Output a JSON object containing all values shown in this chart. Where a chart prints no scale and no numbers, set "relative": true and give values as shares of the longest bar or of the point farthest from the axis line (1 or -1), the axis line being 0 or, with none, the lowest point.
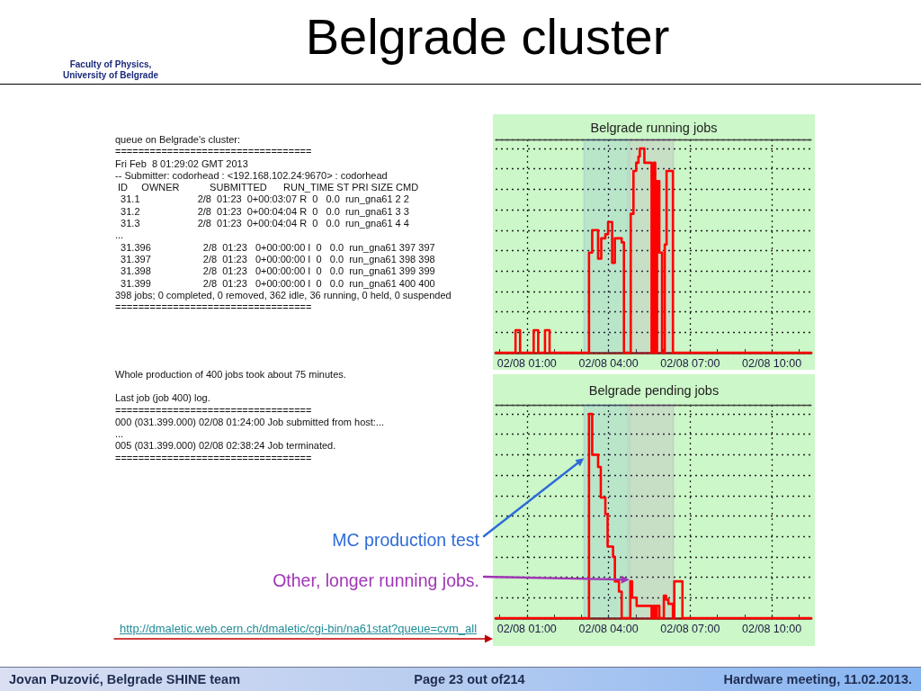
{
  "chart_data": [
    {
      "type": "other",
      "title": "Belgrade cluster",
      "annotations": [
        "Faculty of Physics,\nUniversity of Belgrade"
      ]
    },
    {
      "type": "other",
      "annotations": [
        "queue on Belgrade's cluster:",
        "==================================",
        "Fri Feb  8 01:29:02 GMT 2013",
        "-- Submitter: codorhead : <192.168.102.24:9670> : codorhead",
        " ID     OWNER           SUBMITTED      RUN_TIME ST PRI SIZE CMD",
        "  31.1                     2/8  01:23  0+00:03:07 R  0   0.0  run_gna61 2 2",
        "  31.2                     2/8  01:23  0+00:04:04 R  0   0.0  run_gna61 3 3",
        "  31.3                     2/8  01:23  0+00:04:04 R  0   0.0  run_gna61 4 4",
        "...",
        "  31.396                   2/8  01:23   0+00:00:00 I  0   0.0  run_gna61 397 397",
        "  31.397                   2/8  01:23   0+00:00:00 I  0   0.0  run_gna61 398 398",
        "  31.398                   2/8  01:23   0+00:00:00 I  0   0.0  run_gna61 399 399",
        "  31.399                   2/8  01:23   0+00:00:00 I  0   0.0  run_gna61 400 400",
        "398 jobs; 0 completed, 0 removed, 362 idle, 36 running, 0 held, 0 suspended",
        "=================================="
      ]
    },
    {
      "type": "step",
      "title": "Belgrade running jobs",
      "relative": true,
      "color": "#ff0000",
      "grid": true,
      "x": [
        "2013-02-07T23:51",
        "2013-02-08T00:35",
        "2013-02-08T00:45",
        "2013-02-08T01:15",
        "2013-02-08T01:25",
        "2013-02-08T01:40",
        "2013-02-08T01:50",
        "2013-02-08T03:17",
        "2013-02-08T03:24",
        "2013-02-08T03:37",
        "2013-02-08T03:44",
        "2013-02-08T03:53",
        "2013-02-08T03:59",
        "2013-02-08T04:08",
        "2013-02-08T04:14",
        "2013-02-08T04:29",
        "2013-02-08T04:34",
        "2013-02-08T04:49",
        "2013-02-08T04:55",
        "2013-02-08T05:01",
        "2013-02-08T05:06",
        "2013-02-08T05:09",
        "2013-02-08T05:19",
        "2013-02-08T05:35",
        "2013-02-08T05:40",
        "2013-02-08T05:43",
        "2013-02-08T05:47",
        "2013-02-08T05:52",
        "2013-02-08T05:58",
        "2013-02-08T06:04",
        "2013-02-08T06:08",
        "2013-02-08T06:22",
        "2013-02-08T11:27"
      ],
      "values": [
        0,
        0.11,
        0,
        0.11,
        0,
        0.11,
        0,
        0.49,
        0.6,
        0.46,
        0.56,
        0.58,
        0.64,
        0.44,
        0.56,
        0.54,
        0,
        0.68,
        0.89,
        0.93,
        0.96,
        1,
        0.93,
        0,
        0.93,
        0,
        0.84,
        0.49,
        0,
        0.53,
        0.89,
        0,
        0
      ],
      "xlim": [
        "2013-02-07T23:51",
        "2013-02-08T11:27"
      ],
      "xticks": [
        {
          "value": "2013-02-08T00:00",
          "label": null
        },
        {
          "value": "2013-02-08T01:00",
          "label": "02/08 01:00"
        },
        {
          "value": "2013-02-08T02:00",
          "label": null
        },
        {
          "value": "2013-02-08T03:00",
          "label": null
        },
        {
          "value": "2013-02-08T04:00",
          "label": "02/08 04:00"
        },
        {
          "value": "2013-02-08T05:00",
          "label": null
        },
        {
          "value": "2013-02-08T06:00",
          "label": null
        },
        {
          "value": "2013-02-08T07:00",
          "label": "02/08 07:00"
        },
        {
          "value": "2013-02-08T08:00",
          "label": null
        },
        {
          "value": "2013-02-08T09:00",
          "label": null
        },
        {
          "value": "2013-02-08T10:00",
          "label": "02/08 10:00"
        },
        {
          "value": "2013-02-08T11:00",
          "label": null
        }
      ],
      "bands": [
        {
          "axis": "x",
          "from": "2013-02-08T03:06",
          "to": "2013-02-08T04:43",
          "color": "#2f6bd8"
        },
        {
          "axis": "x",
          "from": "2013-02-08T04:46",
          "to": "2013-02-08T06:23",
          "color": "#a035b5"
        }
      ]
    },
    {
      "type": "other",
      "annotations": [
        "Whole production of 400 jobs took about 75 minutes.",
        "Last job (job 400) log.",
        "==================================",
        "000 (031.399.000) 02/08 01:24:00 Job submitted from host:...",
        "...",
        "005 (031.399.000) 02/08 02:38:24 Job terminated.",
        "==================================",
        "http://dmaletic.web.cern.ch/dmaletic/cgi-bin/na61stat?queue=cvm_all"
      ]
    },
    {
      "type": "step",
      "title": "Belgrade pending jobs",
      "relative": true,
      "color": "#ff0000",
      "grid": true,
      "x": [
        "2013-02-07T23:51",
        "2013-02-08T03:17",
        "2013-02-08T03:24",
        "2013-02-08T03:37",
        "2013-02-08T03:43",
        "2013-02-08T03:53",
        "2013-02-08T03:58",
        "2013-02-08T04:10",
        "2013-02-08T04:14",
        "2013-02-08T04:23",
        "2013-02-08T04:29",
        "2013-02-08T04:48",
        "2013-02-08T04:52",
        "2013-02-08T05:02",
        "2013-02-08T05:35",
        "2013-02-08T05:39",
        "2013-02-08T05:42",
        "2013-02-08T05:46",
        "2013-02-08T05:52",
        "2013-02-08T06:02",
        "2013-02-08T06:07",
        "2013-02-08T06:12",
        "2013-02-08T06:22",
        "2013-02-08T06:25",
        "2013-02-08T06:43",
        "2013-02-08T11:27"
      ],
      "values": [
        0,
        1,
        0.8,
        0.74,
        0.59,
        0.51,
        0.35,
        0.3,
        0.18,
        0.13,
        0,
        0.18,
        0.1,
        0.06,
        0,
        0.06,
        0,
        0.06,
        0,
        0.11,
        0.09,
        0.07,
        0,
        0.18,
        0,
        0
      ],
      "xlim": [
        "2013-02-07T23:51",
        "2013-02-08T11:27"
      ],
      "xticks": [
        {
          "value": "2013-02-08T00:00",
          "label": null
        },
        {
          "value": "2013-02-08T01:00",
          "label": "02/08 01:00"
        },
        {
          "value": "2013-02-08T02:00",
          "label": null
        },
        {
          "value": "2013-02-08T03:00",
          "label": null
        },
        {
          "value": "2013-02-08T04:00",
          "label": "02/08 04:00"
        },
        {
          "value": "2013-02-08T05:00",
          "label": null
        },
        {
          "value": "2013-02-08T06:00",
          "label": null
        },
        {
          "value": "2013-02-08T07:00",
          "label": "02/08 07:00"
        },
        {
          "value": "2013-02-08T08:00",
          "label": null
        },
        {
          "value": "2013-02-08T09:00",
          "label": null
        },
        {
          "value": "2013-02-08T10:00",
          "label": "02/08 10:00"
        },
        {
          "value": "2013-02-08T11:00",
          "label": null
        }
      ],
      "bands": [
        {
          "axis": "x",
          "from": "2013-02-08T03:06",
          "to": "2013-02-08T04:43",
          "color": "#2f6bd8",
          "label": "MC production test"
        },
        {
          "axis": "x",
          "from": "2013-02-08T04:46",
          "to": "2013-02-08T06:23",
          "color": "#a035b5",
          "label": "Other, longer running jobs."
        }
      ]
    },
    {
      "type": "other",
      "annotations": [
        "Jovan Puzović, Belgrade SHINE team",
        "Page 23 out of214",
        "Hardware meeting, 11.02.2013."
      ]
    }
  ]
}
